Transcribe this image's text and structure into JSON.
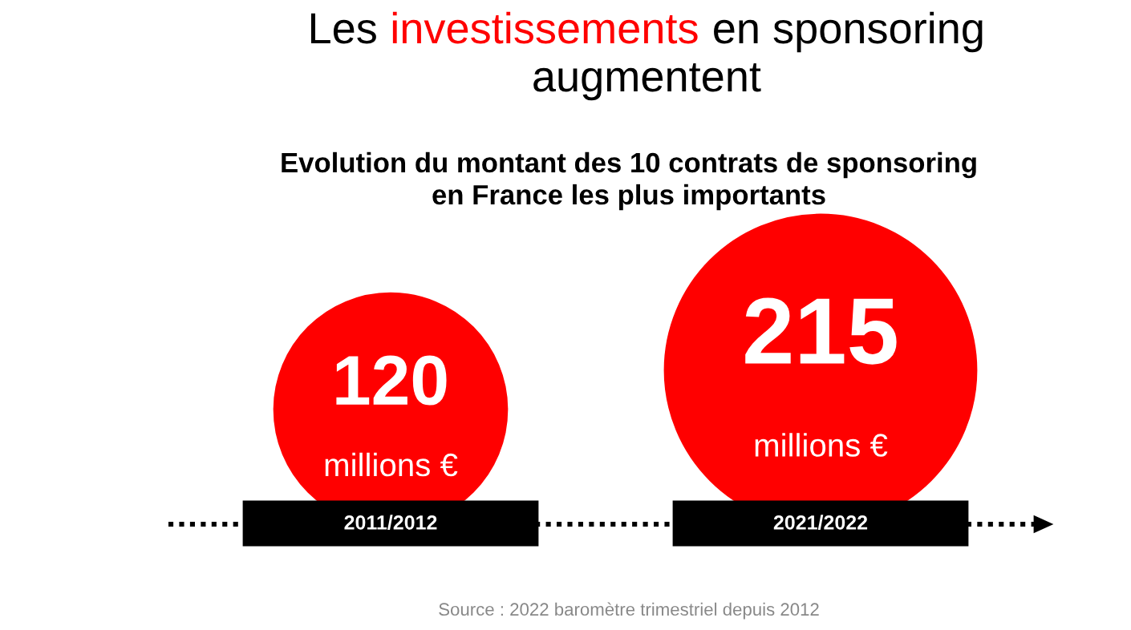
{
  "chart_data": {
    "type": "other",
    "title": "Les investissements en sponsoring augmentent",
    "subtitle": "Evolution du montant des 10 contrats de sponsoring\nen France les plus importants",
    "categories": [
      "2011/2012",
      "2021/2022"
    ],
    "values": [
      120,
      215
    ],
    "colors": [
      "#ff0000",
      "#ff0000"
    ],
    "value_labels": [
      "120",
      "215"
    ],
    "annotations": [
      "millions €",
      "millions €",
      "Source : 2022 baromètre trimestriel depuis 2012"
    ]
  }
}
